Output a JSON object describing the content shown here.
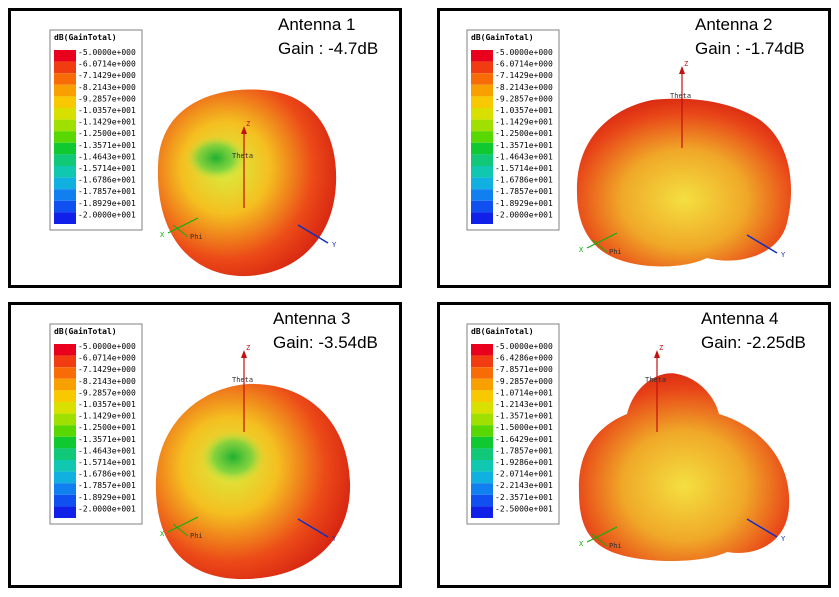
{
  "panels": [
    {
      "title": "Antenna 1",
      "gain": "Gain : -4.7dB",
      "legend_title": "dB(GainTotal)",
      "legend_labels": [
        "-5.0000e+000",
        "-6.0714e+000",
        "-7.1429e+000",
        "-8.2143e+000",
        "-9.2857e+000",
        "-1.0357e+001",
        "-1.1429e+001",
        "-1.2500e+001",
        "-1.3571e+001",
        "-1.4643e+001",
        "-1.5714e+001",
        "-1.6786e+001",
        "-1.7857e+001",
        "-1.8929e+001",
        "-2.0000e+001"
      ],
      "axis_labels": {
        "z": "Z",
        "theta": "Theta",
        "phi": "Phi",
        "x": "X",
        "y": "Y"
      }
    },
    {
      "title": "Antenna 2",
      "gain": "Gain : -1.74dB",
      "legend_title": "dB(GainTotal)",
      "legend_labels": [
        "-5.0000e+000",
        "-6.0714e+000",
        "-7.1429e+000",
        "-8.2143e+000",
        "-9.2857e+000",
        "-1.0357e+001",
        "-1.1429e+001",
        "-1.2500e+001",
        "-1.3571e+001",
        "-1.4643e+001",
        "-1.5714e+001",
        "-1.6786e+001",
        "-1.7857e+001",
        "-1.8929e+001",
        "-2.0000e+001"
      ],
      "axis_labels": {
        "z": "Z",
        "theta": "Theta",
        "phi": "Phi",
        "x": "X",
        "y": "Y"
      }
    },
    {
      "title": "Antenna 3",
      "gain": "Gain: -3.54dB",
      "legend_title": "dB(GainTotal)",
      "legend_labels": [
        "-5.0000e+000",
        "-6.0714e+000",
        "-7.1429e+000",
        "-8.2143e+000",
        "-9.2857e+000",
        "-1.0357e+001",
        "-1.1429e+001",
        "-1.2500e+001",
        "-1.3571e+001",
        "-1.4643e+001",
        "-1.5714e+001",
        "-1.6786e+001",
        "-1.7857e+001",
        "-1.8929e+001",
        "-2.0000e+001"
      ],
      "axis_labels": {
        "z": "Z",
        "theta": "Theta",
        "phi": "Phi",
        "x": "X",
        "y": "Y"
      }
    },
    {
      "title": "Antenna 4",
      "gain": "Gain: -2.25dB",
      "legend_title": "dB(GainTotal)",
      "legend_labels": [
        "-5.0000e+000",
        "-6.4286e+000",
        "-7.8571e+000",
        "-9.2857e+000",
        "-1.0714e+001",
        "-1.2143e+001",
        "-1.3571e+001",
        "-1.5000e+001",
        "-1.6429e+001",
        "-1.7857e+001",
        "-1.9286e+001",
        "-2.0714e+001",
        "-2.2143e+001",
        "-2.3571e+001",
        "-2.5000e+001"
      ],
      "axis_labels": {
        "z": "Z",
        "theta": "Theta",
        "phi": "Phi",
        "x": "X",
        "y": "Y"
      }
    }
  ]
}
